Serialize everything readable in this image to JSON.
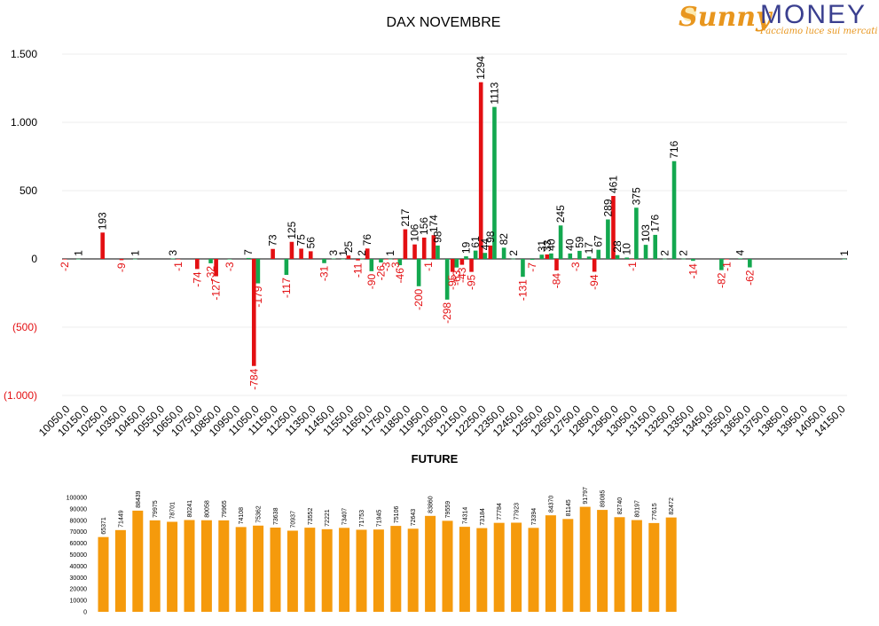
{
  "logo": {
    "brand_a": "Sunny",
    "brand_b": "MONEY",
    "tagline": "Facciamo luce sui mercati"
  },
  "colors": {
    "positive": "#13a84f",
    "negative": "#e30f12",
    "future": "#f59a0c",
    "axis": "#000000",
    "grid": "#eeeeee"
  },
  "chart_data": [
    {
      "type": "bar",
      "title": "DAX NOVEMBRE",
      "xlabel": "",
      "ylabel": "",
      "ylim": [
        -1000,
        1500
      ],
      "yticks": [
        1500,
        1000,
        500,
        0,
        -500,
        -1000
      ],
      "ytick_labels": [
        "1.500",
        "1.000",
        "500",
        "0",
        "(500)",
        "(1.000)"
      ],
      "grid": true,
      "x": [
        10050,
        10100,
        10150,
        10200,
        10250,
        10300,
        10350,
        10400,
        10450,
        10500,
        10550,
        10600,
        10650,
        10700,
        10750,
        10800,
        10850,
        10900,
        10950,
        11000,
        11050,
        11100,
        11150,
        11200,
        11250,
        11300,
        11350,
        11400,
        11450,
        11500,
        11550,
        11600,
        11650,
        11700,
        11750,
        11800,
        11850,
        11900,
        11950,
        12000,
        12050,
        12100,
        12150,
        12200,
        12250,
        12300,
        12350,
        12400,
        12450,
        12500,
        12550,
        12600,
        12650,
        12700,
        12750,
        12800,
        12850,
        12900,
        12950,
        13000,
        13050,
        13100,
        13150,
        13200,
        13250,
        13300,
        13350,
        13400,
        13450,
        13500,
        13550,
        13600,
        13650,
        13700,
        13750,
        13800,
        13850,
        13900,
        13950,
        14000,
        14050,
        14100,
        14150
      ],
      "xtick_labels": [
        "10050,0",
        "10150,0",
        "10250,0",
        "10350,0",
        "10450,0",
        "10550,0",
        "10650,0",
        "10750,0",
        "10850,0",
        "10950,0",
        "11050,0",
        "11150,0",
        "11250,0",
        "11350,0",
        "11450,0",
        "11550,0",
        "11650,0",
        "11750,0",
        "11850,0",
        "11950,0",
        "12050,0",
        "12150,0",
        "12250,0",
        "12350,0",
        "12450,0",
        "12550,0",
        "12650,0",
        "12750,0",
        "12850,0",
        "12950,0",
        "13050,0",
        "13150,0",
        "13250,0",
        "13350,0",
        "13450,0",
        "13550,0",
        "13650,0",
        "13750,0",
        "13850,0",
        "13950,0",
        "14050,0",
        "14150,0"
      ],
      "series": [
        {
          "color": "#e30f12",
          "values": [
            -2,
            null,
            null,
            null,
            193,
            null,
            -9,
            null,
            null,
            null,
            null,
            null,
            -1,
            null,
            -74,
            null,
            -127,
            null,
            null,
            null,
            -784,
            null,
            73,
            null,
            125,
            75,
            56,
            null,
            null,
            null,
            25,
            -11,
            76,
            null,
            -3,
            -3,
            217,
            106,
            156,
            174,
            null,
            -95,
            -43,
            -95,
            1294,
            98,
            null,
            null,
            null,
            null,
            null,
            33,
            -84,
            null,
            -3,
            null,
            -94,
            null,
            461,
            null,
            -1,
            null,
            null,
            null,
            null,
            null,
            null,
            null,
            null,
            null,
            -1,
            null,
            null,
            null,
            null,
            null,
            null,
            null,
            null,
            null,
            null,
            null,
            null
          ]
        },
        {
          "color": "#13a84f",
          "values": [
            null,
            1,
            null,
            null,
            null,
            null,
            null,
            1,
            null,
            null,
            null,
            3,
            null,
            null,
            null,
            -32,
            null,
            -3,
            null,
            7,
            -179,
            null,
            null,
            -117,
            null,
            null,
            null,
            -31,
            3,
            1,
            null,
            2,
            -90,
            -26,
            1,
            -46,
            null,
            -200,
            -1,
            98,
            -298,
            -63,
            19,
            61,
            44,
            1113,
            82,
            2,
            -131,
            -7,
            31,
            40,
            245,
            40,
            59,
            17,
            67,
            289,
            28,
            10,
            375,
            103,
            176,
            2,
            716,
            2,
            -14,
            null,
            null,
            -82,
            null,
            4,
            -62,
            null,
            null,
            null,
            null,
            null,
            null,
            null,
            null,
            null,
            1
          ]
        }
      ]
    },
    {
      "type": "bar",
      "title": "FUTURE",
      "ylim": [
        0,
        100000
      ],
      "yticks": [
        0,
        10000,
        20000,
        30000,
        40000,
        50000,
        60000,
        70000,
        80000,
        90000,
        100000
      ],
      "values": [
        65371,
        71449,
        88439,
        79975,
        78701,
        80241,
        80058,
        79965,
        74108,
        75362,
        73638,
        70937,
        73552,
        72221,
        73407,
        71753,
        71945,
        75106,
        72643,
        83860,
        79559,
        74314,
        73184,
        77784,
        77923,
        73394,
        84370,
        81145,
        91797,
        89085,
        82740,
        80197,
        77615,
        82472
      ]
    }
  ]
}
